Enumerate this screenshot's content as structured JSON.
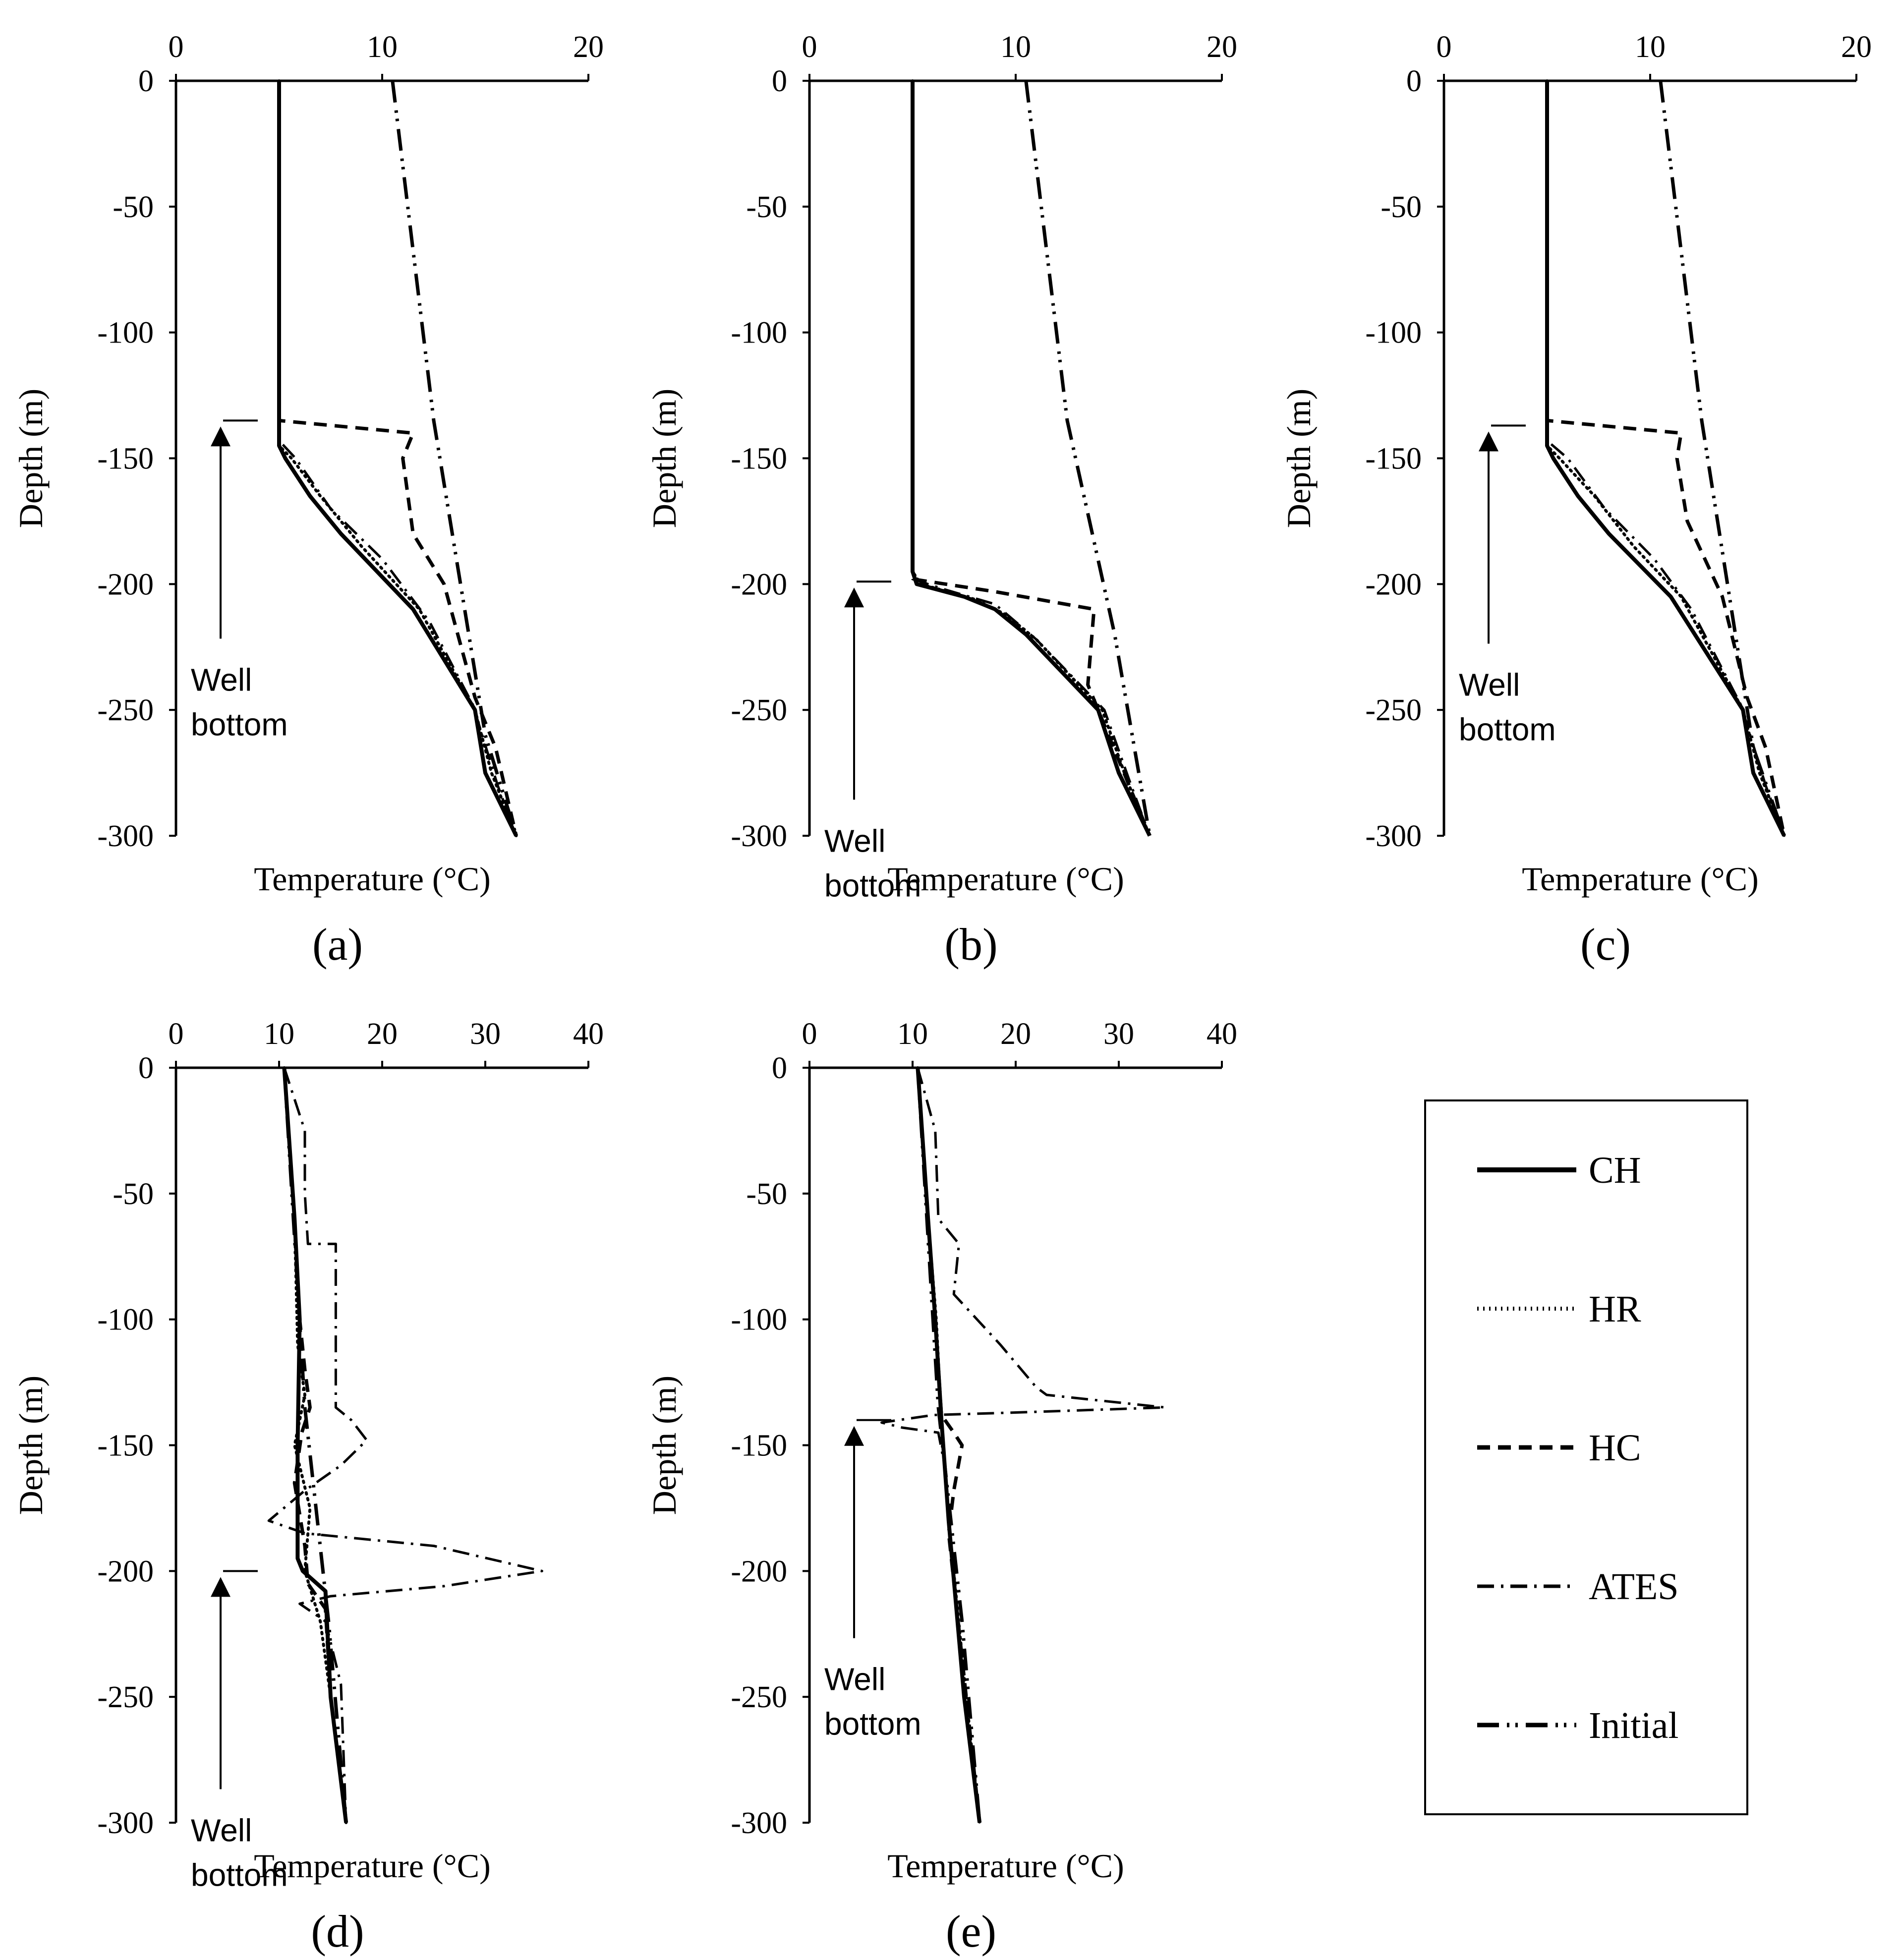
{
  "series_styles": {
    "CH": {
      "label": "CH",
      "dash": "none",
      "width": 8
    },
    "HR": {
      "label": "HR",
      "dash": "3 9",
      "width": 6
    },
    "HC": {
      "label": "HC",
      "dash": "26 16",
      "width": 7
    },
    "ATES": {
      "label": "ATES",
      "dash": "34 14 5 14",
      "width": 5
    },
    "Initial": {
      "label": "Initial",
      "dash": "44 16 5 12 5 16",
      "width": 7
    }
  },
  "legend": {
    "items": [
      "CH",
      "HR",
      "HC",
      "ATES",
      "Initial"
    ]
  },
  "chart_data": [
    {
      "type": "line",
      "panel_label": "(a)",
      "xlabel": "Temperature (°C)",
      "ylabel": "Depth (m)",
      "xlim": [
        0,
        20
      ],
      "ylim": [
        -300,
        0
      ],
      "x_ticks": [
        "0",
        "10",
        "20"
      ],
      "y_ticks": [
        "0",
        "-50",
        "-100",
        "-150",
        "-200",
        "-250",
        "-300"
      ],
      "annotation": {
        "line1": "Well",
        "line2": "bottom",
        "depth": -135
      },
      "series": [
        {
          "name": "CH",
          "points": [
            [
              5,
              0
            ],
            [
              5,
              -145
            ],
            [
              5.3,
              -150
            ],
            [
              6.5,
              -165
            ],
            [
              8,
              -180
            ],
            [
              11.5,
              -210
            ],
            [
              14.5,
              -250
            ],
            [
              15,
              -275
            ],
            [
              16.5,
              -300
            ]
          ]
        },
        {
          "name": "HR",
          "points": [
            [
              5,
              0
            ],
            [
              5,
              -145
            ],
            [
              5.6,
              -150
            ],
            [
              7,
              -165
            ],
            [
              9,
              -185
            ],
            [
              11.8,
              -210
            ],
            [
              14.5,
              -250
            ],
            [
              15.3,
              -275
            ],
            [
              16.5,
              -300
            ]
          ]
        },
        {
          "name": "HC",
          "points": [
            [
              5,
              0
            ],
            [
              5,
              -135
            ],
            [
              11.5,
              -140
            ],
            [
              11,
              -150
            ],
            [
              11.5,
              -180
            ],
            [
              13,
              -200
            ],
            [
              14.5,
              -245
            ],
            [
              15.5,
              -265
            ],
            [
              16.5,
              -300
            ]
          ]
        },
        {
          "name": "ATES",
          "points": [
            [
              5,
              0
            ],
            [
              5,
              -143
            ],
            [
              5.8,
              -150
            ],
            [
              7.5,
              -170
            ],
            [
              10,
              -190
            ],
            [
              12.3,
              -215
            ],
            [
              14.4,
              -248
            ],
            [
              15.6,
              -280
            ],
            [
              16.5,
              -300
            ]
          ]
        },
        {
          "name": "Initial",
          "points": [
            [
              10.5,
              0
            ],
            [
              12.5,
              -135
            ],
            [
              15,
              -260
            ],
            [
              16.5,
              -300
            ]
          ]
        }
      ]
    },
    {
      "type": "line",
      "panel_label": "(b)",
      "xlabel": "Temperature (°C)",
      "ylabel": "Depth (m)",
      "xlim": [
        0,
        20
      ],
      "ylim": [
        -300,
        0
      ],
      "x_ticks": [
        "0",
        "10",
        "20"
      ],
      "y_ticks": [
        "0",
        "-50",
        "-100",
        "-150",
        "-200",
        "-250",
        "-300"
      ],
      "annotation": {
        "line1": "Well",
        "line2": "bottom",
        "depth": -199
      },
      "series": [
        {
          "name": "CH",
          "points": [
            [
              5,
              0
            ],
            [
              5,
              -195
            ],
            [
              5.2,
              -200
            ],
            [
              7.5,
              -205
            ],
            [
              9,
              -210
            ],
            [
              10.5,
              -220
            ],
            [
              14,
              -250
            ],
            [
              15,
              -275
            ],
            [
              16.5,
              -300
            ]
          ]
        },
        {
          "name": "HR",
          "points": [
            [
              5,
              0
            ],
            [
              5,
              -195
            ],
            [
              5.4,
              -200
            ],
            [
              8,
              -206
            ],
            [
              9.5,
              -212
            ],
            [
              11,
              -222
            ],
            [
              14.2,
              -250
            ],
            [
              15.4,
              -278
            ],
            [
              16.5,
              -300
            ]
          ]
        },
        {
          "name": "HC",
          "points": [
            [
              5,
              0
            ],
            [
              5,
              -198
            ],
            [
              9,
              -203
            ],
            [
              13.8,
              -210
            ],
            [
              13.5,
              -240
            ],
            [
              14.5,
              -260
            ],
            [
              16.5,
              -300
            ]
          ]
        },
        {
          "name": "ATES",
          "points": [
            [
              5,
              0
            ],
            [
              5,
              -198
            ],
            [
              6.5,
              -202
            ],
            [
              9,
              -208
            ],
            [
              11,
              -222
            ],
            [
              14.3,
              -250
            ],
            [
              15.6,
              -280
            ],
            [
              16.5,
              -300
            ]
          ]
        },
        {
          "name": "Initial",
          "points": [
            [
              10.5,
              0
            ],
            [
              12.5,
              -135
            ],
            [
              14.8,
              -220
            ],
            [
              16.5,
              -300
            ]
          ]
        }
      ]
    },
    {
      "type": "line",
      "panel_label": "(c)",
      "xlabel": "Temperature (°C)",
      "ylabel": "Depth (m)",
      "xlim": [
        0,
        20
      ],
      "ylim": [
        -300,
        0
      ],
      "x_ticks": [
        "0",
        "10",
        "20"
      ],
      "y_ticks": [
        "0",
        "-50",
        "-100",
        "-150",
        "-200",
        "-250",
        "-300"
      ],
      "annotation": {
        "line1": "Well",
        "line2": "bottom",
        "depth": -137
      },
      "series": [
        {
          "name": "CH",
          "points": [
            [
              5,
              0
            ],
            [
              5,
              -145
            ],
            [
              5.3,
              -150
            ],
            [
              6.5,
              -165
            ],
            [
              8,
              -180
            ],
            [
              11,
              -205
            ],
            [
              14.5,
              -250
            ],
            [
              15,
              -275
            ],
            [
              16.5,
              -300
            ]
          ]
        },
        {
          "name": "HR",
          "points": [
            [
              5,
              0
            ],
            [
              5,
              -145
            ],
            [
              5.6,
              -150
            ],
            [
              7.3,
              -165
            ],
            [
              9.2,
              -185
            ],
            [
              11.5,
              -205
            ],
            [
              14.5,
              -250
            ],
            [
              15.3,
              -275
            ],
            [
              16.5,
              -300
            ]
          ]
        },
        {
          "name": "HC",
          "points": [
            [
              5,
              0
            ],
            [
              5,
              -135
            ],
            [
              11.5,
              -140
            ],
            [
              11.3,
              -150
            ],
            [
              11.8,
              -175
            ],
            [
              13.5,
              -205
            ],
            [
              14.7,
              -245
            ],
            [
              15.6,
              -265
            ],
            [
              16.5,
              -300
            ]
          ]
        },
        {
          "name": "ATES",
          "points": [
            [
              5,
              0
            ],
            [
              5,
              -143
            ],
            [
              6,
              -150
            ],
            [
              7.8,
              -170
            ],
            [
              10.2,
              -190
            ],
            [
              12,
              -210
            ],
            [
              14.4,
              -248
            ],
            [
              15.6,
              -280
            ],
            [
              16.5,
              -300
            ]
          ]
        },
        {
          "name": "Initial",
          "points": [
            [
              10.5,
              0
            ],
            [
              12.5,
              -135
            ],
            [
              15,
              -265
            ],
            [
              16.5,
              -300
            ]
          ]
        }
      ]
    },
    {
      "type": "line",
      "panel_label": "(d)",
      "xlabel": "Temperature (°C)",
      "ylabel": "Depth (m)",
      "xlim": [
        0,
        40
      ],
      "ylim": [
        -300,
        0
      ],
      "x_ticks": [
        "0",
        "10",
        "20",
        "30",
        "40"
      ],
      "y_ticks": [
        "0",
        "-50",
        "-100",
        "-150",
        "-200",
        "-250",
        "-300"
      ],
      "annotation": {
        "line1": "Well",
        "line2": "bottom",
        "depth": -200
      },
      "series": [
        {
          "name": "CH",
          "points": [
            [
              10.5,
              0
            ],
            [
              11.5,
              -60
            ],
            [
              12,
              -100
            ],
            [
              11.8,
              -150
            ],
            [
              11.8,
              -195
            ],
            [
              12.3,
              -200
            ],
            [
              14.5,
              -208
            ],
            [
              15,
              -250
            ],
            [
              16.5,
              -300
            ]
          ]
        },
        {
          "name": "HR",
          "points": [
            [
              10.5,
              0
            ],
            [
              11.5,
              -60
            ],
            [
              11.8,
              -110
            ],
            [
              12.5,
              -130
            ],
            [
              11.5,
              -150
            ],
            [
              13,
              -175
            ],
            [
              12.5,
              -200
            ],
            [
              14,
              -220
            ],
            [
              15,
              -250
            ],
            [
              16.5,
              -300
            ]
          ]
        },
        {
          "name": "HC",
          "points": [
            [
              10.5,
              0
            ],
            [
              11.5,
              -60
            ],
            [
              12,
              -100
            ],
            [
              12.5,
              -120
            ],
            [
              13,
              -135
            ],
            [
              12.2,
              -145
            ],
            [
              11.5,
              -165
            ],
            [
              12.5,
              -190
            ],
            [
              12.8,
              -205
            ],
            [
              14.5,
              -215
            ],
            [
              15,
              -250
            ],
            [
              16.5,
              -300
            ]
          ]
        },
        {
          "name": "ATES",
          "points": [
            [
              10.5,
              0
            ],
            [
              12.5,
              -25
            ],
            [
              12.5,
              -50
            ],
            [
              12.8,
              -70
            ],
            [
              15.5,
              -70
            ],
            [
              15.5,
              -135
            ],
            [
              17,
              -140
            ],
            [
              18.5,
              -148
            ],
            [
              16,
              -158
            ],
            [
              12.5,
              -168
            ],
            [
              9,
              -180
            ],
            [
              12.5,
              -185
            ],
            [
              25,
              -190
            ],
            [
              35.5,
              -200
            ],
            [
              26,
              -206
            ],
            [
              15,
              -210
            ],
            [
              12,
              -213
            ],
            [
              14.5,
              -220
            ],
            [
              16,
              -245
            ],
            [
              16.5,
              -300
            ]
          ]
        },
        {
          "name": "Initial",
          "points": [
            [
              10.5,
              0
            ],
            [
              12.5,
              -135
            ],
            [
              14.8,
              -220
            ],
            [
              16.5,
              -300
            ]
          ]
        }
      ]
    },
    {
      "type": "line",
      "panel_label": "(e)",
      "xlabel": "Temperature (°C)",
      "ylabel": "Depth (m)",
      "xlim": [
        0,
        40
      ],
      "ylim": [
        -300,
        0
      ],
      "x_ticks": [
        "0",
        "10",
        "20",
        "30",
        "40"
      ],
      "y_ticks": [
        "0",
        "-50",
        "-100",
        "-150",
        "-200",
        "-250",
        "-300"
      ],
      "annotation": {
        "line1": "Well",
        "line2": "bottom",
        "depth": -140
      },
      "series": [
        {
          "name": "CH",
          "points": [
            [
              10.5,
              0
            ],
            [
              11.5,
              -60
            ],
            [
              12.2,
              -100
            ],
            [
              12.8,
              -140
            ],
            [
              13.5,
              -180
            ],
            [
              15,
              -250
            ],
            [
              16.5,
              -300
            ]
          ]
        },
        {
          "name": "HR",
          "points": [
            [
              10.5,
              0
            ],
            [
              11.5,
              -60
            ],
            [
              12.3,
              -100
            ],
            [
              12.8,
              -140
            ],
            [
              13.5,
              -180
            ],
            [
              15.2,
              -250
            ],
            [
              16.5,
              -300
            ]
          ]
        },
        {
          "name": "HC",
          "points": [
            [
              10.5,
              0
            ],
            [
              11.5,
              -60
            ],
            [
              12.2,
              -100
            ],
            [
              12.8,
              -138
            ],
            [
              14,
              -145
            ],
            [
              14.8,
              -150
            ],
            [
              14,
              -168
            ],
            [
              13.5,
              -185
            ],
            [
              15.2,
              -250
            ],
            [
              16.5,
              -300
            ]
          ]
        },
        {
          "name": "ATES",
          "points": [
            [
              10.5,
              0
            ],
            [
              12.2,
              -25
            ],
            [
              12.5,
              -60
            ],
            [
              14.5,
              -70
            ],
            [
              14,
              -90
            ],
            [
              18.5,
              -110
            ],
            [
              22,
              -127
            ],
            [
              23,
              -130
            ],
            [
              34.5,
              -135
            ],
            [
              20,
              -137
            ],
            [
              12,
              -138
            ],
            [
              7,
              -141
            ],
            [
              9,
              -143
            ],
            [
              12.5,
              -145
            ],
            [
              13.2,
              -160
            ],
            [
              13.5,
              -180
            ],
            [
              15,
              -250
            ],
            [
              16.5,
              -300
            ]
          ]
        },
        {
          "name": "Initial",
          "points": [
            [
              10.5,
              0
            ],
            [
              12.5,
              -135
            ],
            [
              14.8,
              -220
            ],
            [
              16.5,
              -300
            ]
          ]
        }
      ]
    }
  ]
}
